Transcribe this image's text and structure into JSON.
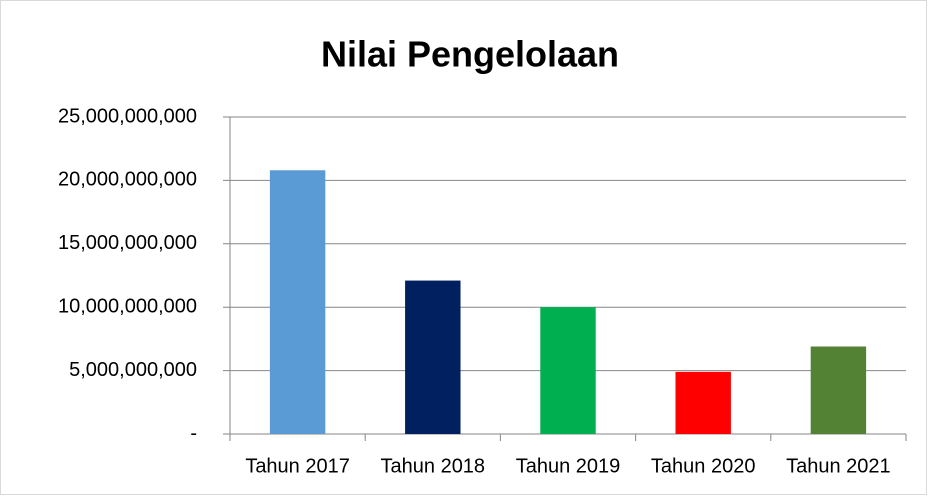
{
  "chart_data": {
    "type": "bar",
    "title": "Nilai Pengelolaan",
    "categories": [
      "Tahun 2017",
      "Tahun 2018",
      "Tahun 2019",
      "Tahun 2020",
      "Tahun 2021"
    ],
    "values": [
      20800000000,
      12100000000,
      10000000000,
      4900000000,
      6900000000
    ],
    "colors": [
      "#5b9bd5",
      "#002060",
      "#00b050",
      "#ff0000",
      "#548235"
    ],
    "ylim": [
      0,
      25000000000
    ],
    "yticks": [
      {
        "value": 0,
        "label": "-"
      },
      {
        "value": 5000000000,
        "label": "5,000,000,000"
      },
      {
        "value": 10000000000,
        "label": "10,000,000,000"
      },
      {
        "value": 15000000000,
        "label": "15,000,000,000"
      },
      {
        "value": 20000000000,
        "label": "20,000,000,000"
      },
      {
        "value": 25000000000,
        "label": "25,000,000,000"
      }
    ],
    "grid": true
  }
}
